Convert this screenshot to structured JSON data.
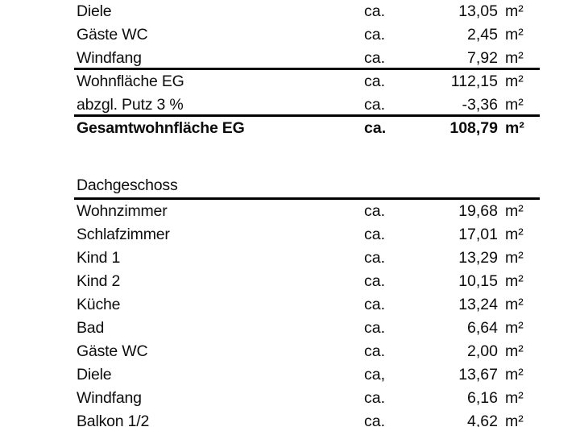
{
  "page": {
    "background": "#ffffff",
    "text_color": "#0d0d0d",
    "rule_color": "#000000"
  },
  "document": {
    "kind": "living-area-calculation-table",
    "sections": [
      {
        "name": "erdgeschoss-summary",
        "rows": [
          {
            "label": "Diele",
            "approx": "ca.",
            "value": "13,05",
            "unit": "m²",
            "bold": false,
            "rule_below": false
          },
          {
            "label": "Gäste WC",
            "approx": "ca.",
            "value": "2,45",
            "unit": "m²",
            "bold": false,
            "rule_below": false
          },
          {
            "label": "Windfang",
            "approx": "ca.",
            "value": "7,92",
            "unit": "m²",
            "bold": false,
            "rule_below": true
          },
          {
            "label": "Wohnfläche EG",
            "approx": "ca.",
            "value": "112,15",
            "unit": "m²",
            "bold": false,
            "rule_below": false
          },
          {
            "label": "abzgl. Putz 3 %",
            "approx": "ca.",
            "value": "-3,36",
            "unit": "m²",
            "bold": false,
            "rule_below": true
          },
          {
            "label": "Gesamtwohnfläche EG",
            "approx": "ca.",
            "value": "108,79",
            "unit": "m²",
            "bold": true,
            "rule_below": false
          }
        ]
      },
      {
        "name": "dachgeschoss",
        "header": "Dachgeschoss",
        "rows": [
          {
            "label": "Wohnzimmer",
            "approx": "ca.",
            "value": "19,68",
            "unit": "m²",
            "bold": false,
            "rule_below": false
          },
          {
            "label": "Schlafzimmer",
            "approx": "ca.",
            "value": "17,01",
            "unit": "m²",
            "bold": false,
            "rule_below": false
          },
          {
            "label": "Kind 1",
            "approx": "ca.",
            "value": "13,29",
            "unit": "m²",
            "bold": false,
            "rule_below": false
          },
          {
            "label": "Kind 2",
            "approx": "ca.",
            "value": "10,15",
            "unit": "m²",
            "bold": false,
            "rule_below": false
          },
          {
            "label": "Küche",
            "approx": "ca.",
            "value": "13,24",
            "unit": "m²",
            "bold": false,
            "rule_below": false
          },
          {
            "label": "Bad",
            "approx": "ca.",
            "value": "6,64",
            "unit": "m²",
            "bold": false,
            "rule_below": false
          },
          {
            "label": "Gäste WC",
            "approx": "ca.",
            "value": "2,00",
            "unit": "m²",
            "bold": false,
            "rule_below": false
          },
          {
            "label": "Diele",
            "approx": "ca,",
            "value": "13,67",
            "unit": "m²",
            "bold": false,
            "rule_below": false
          },
          {
            "label": "Windfang",
            "approx": "ca.",
            "value": "6,16",
            "unit": "m²",
            "bold": false,
            "rule_below": false
          },
          {
            "label": "Balkon 1/2",
            "approx": "ca.",
            "value": "4,62",
            "unit": "m²",
            "bold": false,
            "rule_below": false
          }
        ]
      }
    ]
  }
}
